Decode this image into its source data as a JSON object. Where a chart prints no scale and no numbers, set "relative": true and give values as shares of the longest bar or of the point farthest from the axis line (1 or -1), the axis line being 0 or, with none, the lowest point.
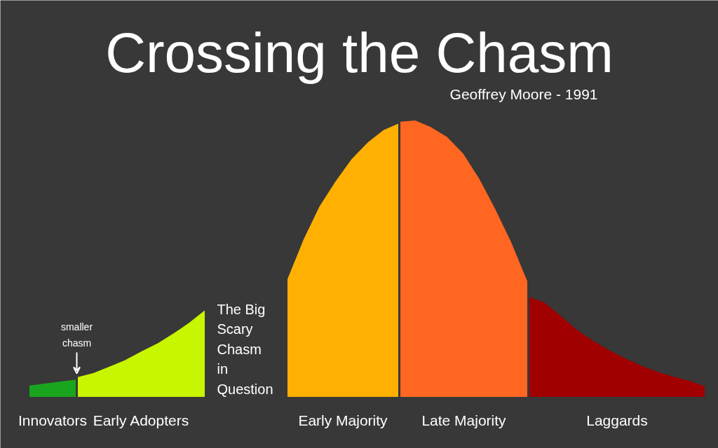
{
  "chart_data": {
    "type": "area",
    "title": "Crossing the Chasm",
    "subtitle": "Geoffrey Moore - 1991",
    "relative": true,
    "categories": [
      null,
      null,
      null,
      null,
      null,
      null,
      null,
      null,
      null,
      null,
      null,
      null,
      null,
      null,
      null,
      null,
      null,
      null,
      null,
      null,
      null,
      null,
      null,
      null,
      null,
      null,
      null,
      null,
      null,
      null,
      null,
      null,
      null,
      null,
      null,
      null,
      null,
      null,
      null,
      null,
      null,
      null,
      null
    ],
    "series": [
      {
        "name": "Innovators",
        "color": "#1aa51e",
        "values": [
          0.048,
          0.055,
          0.063,
          0.07,
          null,
          null,
          null,
          null,
          null,
          null,
          null,
          null,
          null,
          null,
          null,
          null,
          null,
          null,
          null,
          null,
          null,
          null,
          null,
          null,
          null,
          null,
          null,
          null,
          null,
          null,
          null,
          null,
          null,
          null,
          null,
          null,
          null,
          null,
          null,
          null,
          null,
          null,
          null
        ]
      },
      {
        "name": "Early Adopters",
        "color": "#c8f500",
        "values": [
          null,
          null,
          null,
          0.078,
          0.093,
          0.116,
          0.14,
          0.171,
          0.2,
          0.236,
          0.276,
          0.322,
          null,
          null,
          null,
          null,
          null,
          null,
          null,
          null,
          null,
          null,
          null,
          null,
          null,
          null,
          null,
          null,
          null,
          null,
          null,
          null,
          null,
          null,
          null,
          null,
          null,
          null,
          null,
          null,
          null,
          null,
          null
        ]
      },
      {
        "name": "Early Majority",
        "color": "#ffb000",
        "values": [
          null,
          null,
          null,
          null,
          null,
          null,
          null,
          null,
          null,
          null,
          null,
          null,
          null,
          null,
          null,
          null,
          0.427,
          0.57,
          0.69,
          0.78,
          0.86,
          0.92,
          0.965,
          0.99,
          null,
          null,
          null,
          null,
          null,
          null,
          null,
          null,
          null,
          null,
          null,
          null,
          null,
          null,
          null,
          null,
          null,
          null,
          null
        ]
      },
      {
        "name": "Late Majority",
        "color": "#ff6622",
        "values": [
          null,
          null,
          null,
          null,
          null,
          null,
          null,
          null,
          null,
          null,
          null,
          null,
          null,
          null,
          null,
          null,
          null,
          null,
          null,
          null,
          null,
          null,
          null,
          0.995,
          1.0,
          0.975,
          0.94,
          0.88,
          0.79,
          0.68,
          0.56,
          0.42,
          null,
          null,
          null,
          null,
          null,
          null,
          null,
          null,
          null,
          null,
          null
        ]
      },
      {
        "name": "Laggards",
        "color": "#a00000",
        "values": [
          null,
          null,
          null,
          null,
          null,
          null,
          null,
          null,
          null,
          null,
          null,
          null,
          null,
          null,
          null,
          null,
          null,
          null,
          null,
          null,
          null,
          null,
          null,
          null,
          null,
          null,
          null,
          null,
          null,
          null,
          null,
          0.367,
          0.347,
          0.3,
          0.25,
          0.21,
          0.176,
          0.146,
          0.12,
          0.098,
          0.08,
          0.065,
          0.045
        ]
      }
    ],
    "annotations": [
      "smaller\nchasm",
      "The Big\nScary\nChasm\nin\nQuestion"
    ]
  }
}
